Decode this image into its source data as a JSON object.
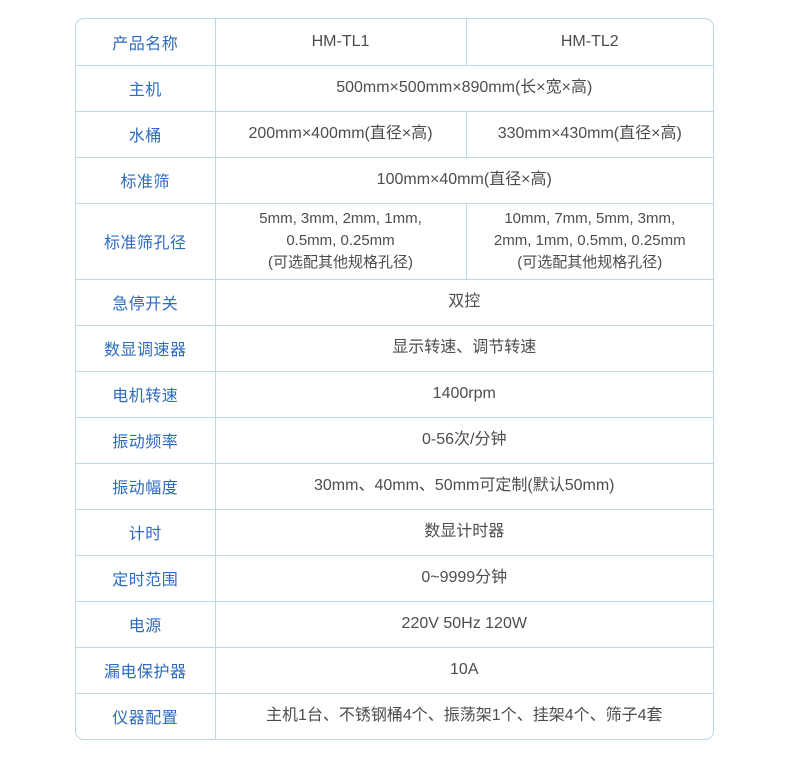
{
  "colors": {
    "label_blue": "#2c6bbf",
    "value_gray": "#4d4d4d",
    "border_blue": "#b9d7ea",
    "background": "#ffffff"
  },
  "table": {
    "rows": [
      {
        "label": "产品名称",
        "cells": [
          "HM-TL1",
          "HM-TL2"
        ]
      },
      {
        "label": "主机",
        "cells": [
          "500mm×500mm×890mm(长×宽×高)"
        ]
      },
      {
        "label": "水桶",
        "cells": [
          "200mm×400mm(直径×高)",
          "330mm×430mm(直径×高)"
        ]
      },
      {
        "label": "标准筛",
        "cells": [
          "100mm×40mm(直径×高)"
        ]
      },
      {
        "label": "标准筛孔径",
        "cells": [
          "5mm, 3mm, 2mm, 1mm,\n0.5mm, 0.25mm\n(可选配其他规格孔径)",
          "10mm, 7mm, 5mm, 3mm,\n2mm, 1mm, 0.5mm, 0.25mm\n(可选配其他规格孔径)"
        ]
      },
      {
        "label": "急停开关",
        "cells": [
          "双控"
        ]
      },
      {
        "label": "数显调速器",
        "cells": [
          "显示转速、调节转速"
        ]
      },
      {
        "label": "电机转速",
        "cells": [
          "1400rpm"
        ]
      },
      {
        "label": "振动频率",
        "cells": [
          "0-56次/分钟"
        ]
      },
      {
        "label": "振动幅度",
        "cells": [
          "30mm、40mm、50mm可定制(默认50mm)"
        ]
      },
      {
        "label": "计时",
        "cells": [
          "数显计时器"
        ]
      },
      {
        "label": "定时范围",
        "cells": [
          "0~9999分钟"
        ]
      },
      {
        "label": "电源",
        "cells": [
          "220V 50Hz 120W"
        ]
      },
      {
        "label": "漏电保护器",
        "cells": [
          "10A"
        ]
      },
      {
        "label": "仪器配置",
        "cells": [
          "主机1台、不锈钢桶4个、振荡架1个、挂架4个、筛子4套"
        ]
      }
    ]
  }
}
